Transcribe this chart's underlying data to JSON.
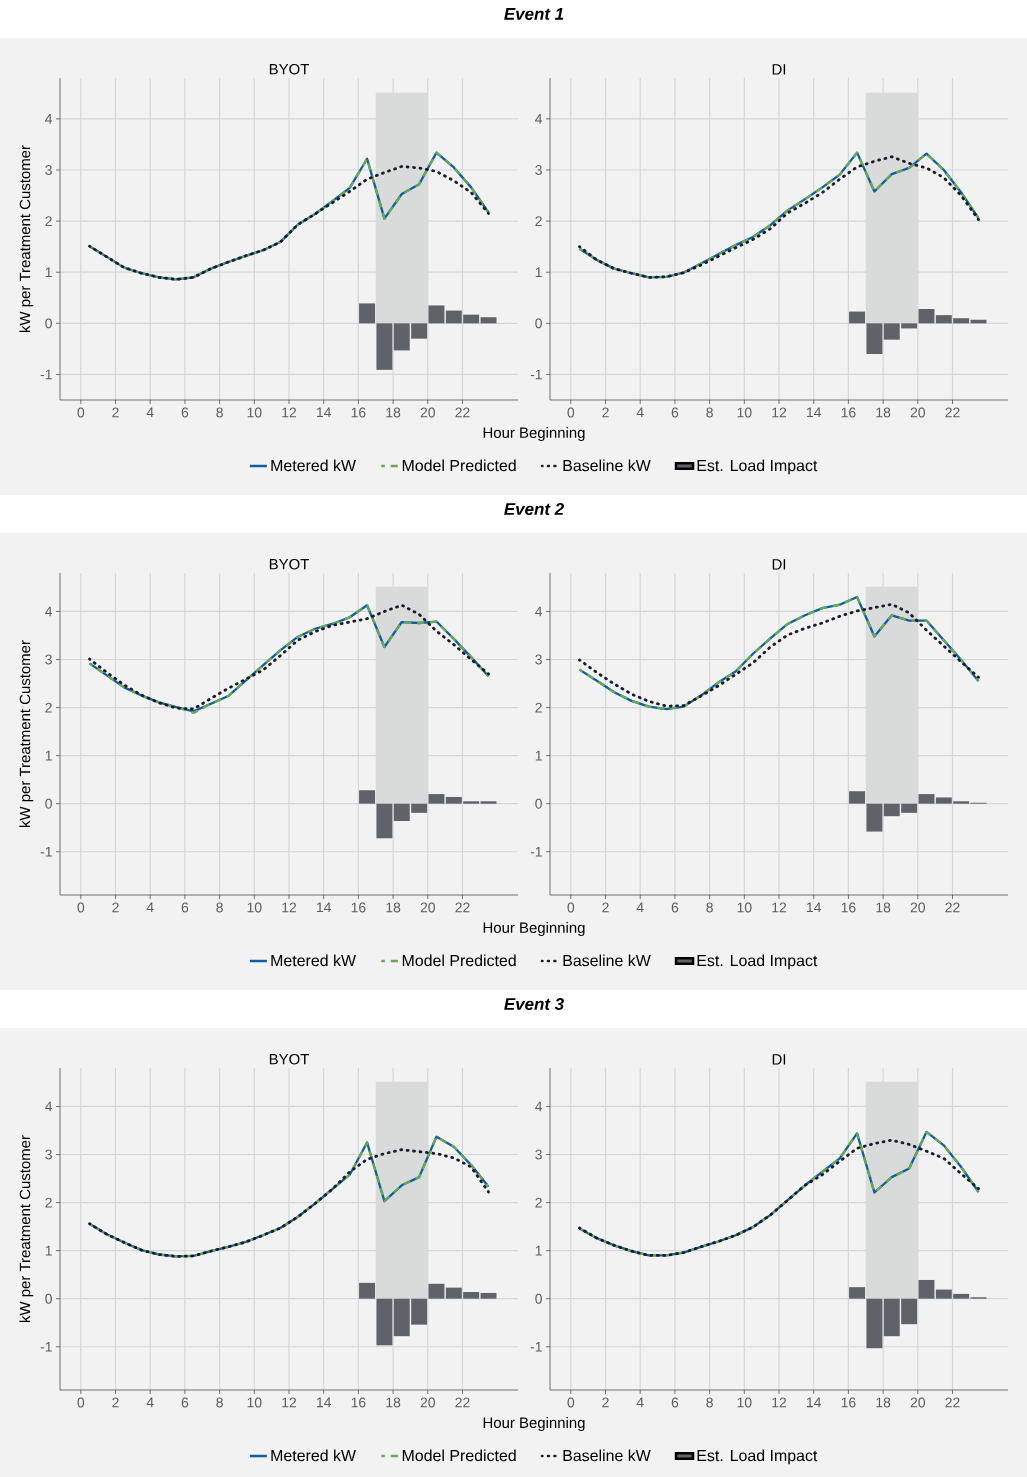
{
  "chart_data": [
    {
      "type": "line",
      "title": "Event 1",
      "subtitle": "BYOT",
      "xlabel": "Hour Beginning",
      "ylabel": "kW per Treatment Customer",
      "x": [
        0.5,
        1.5,
        2.5,
        3.5,
        4.5,
        5.5,
        6.5,
        7.5,
        8.5,
        9.5,
        10.5,
        11.5,
        12.5,
        13.5,
        14.5,
        15.5,
        16.5,
        17.5,
        18.5,
        19.5,
        20.5,
        21.5,
        22.5,
        23.5
      ],
      "xlim": [
        -1.2,
        25.2
      ],
      "ylim": [
        -1.5,
        4.8
      ],
      "xticks": [
        0,
        2,
        4,
        6,
        8,
        10,
        12,
        14,
        16,
        18,
        20,
        22
      ],
      "yticks": [
        -1,
        0,
        1,
        2,
        3,
        4
      ],
      "grid": true,
      "legend": "bottom",
      "bands": [
        {
          "axis": "x",
          "from": 17,
          "to": 20,
          "color": "#d9dada"
        }
      ],
      "series": [
        {
          "name": "Metered kW",
          "color": "#0b5fa5",
          "line_style": "solid",
          "values": [
            1.51,
            1.3,
            1.09,
            0.98,
            0.9,
            0.86,
            0.9,
            1.07,
            1.2,
            1.32,
            1.43,
            1.59,
            1.93,
            2.14,
            2.39,
            2.65,
            3.22,
            2.05,
            2.53,
            2.72,
            3.34,
            3.05,
            2.66,
            2.17
          ]
        },
        {
          "name": "Model Predicted",
          "color": "#6aa84f",
          "line_style": "dashed",
          "values": [
            1.51,
            1.3,
            1.09,
            0.98,
            0.9,
            0.86,
            0.9,
            1.07,
            1.2,
            1.32,
            1.43,
            1.59,
            1.93,
            2.14,
            2.39,
            2.65,
            3.22,
            2.05,
            2.53,
            2.72,
            3.34,
            3.05,
            2.66,
            2.17
          ]
        },
        {
          "name": "Baseline kW",
          "color": "#1b1b2b",
          "line_style": "dotted",
          "values": [
            1.51,
            1.3,
            1.09,
            0.98,
            0.9,
            0.86,
            0.9,
            1.07,
            1.2,
            1.32,
            1.43,
            1.59,
            1.93,
            2.14,
            2.36,
            2.58,
            2.82,
            2.95,
            3.07,
            3.04,
            2.97,
            2.79,
            2.56,
            2.15
          ]
        },
        {
          "name": "Est. Load Impact",
          "type": "bar",
          "color": "#5f6369",
          "values": [
            null,
            null,
            null,
            null,
            null,
            null,
            null,
            null,
            null,
            null,
            null,
            null,
            null,
            null,
            null,
            null,
            0.39,
            -0.91,
            -0.53,
            -0.3,
            0.35,
            0.25,
            0.17,
            0.12
          ]
        }
      ]
    },
    {
      "type": "line",
      "subtitle": "DI",
      "x": [
        0.5,
        1.5,
        2.5,
        3.5,
        4.5,
        5.5,
        6.5,
        7.5,
        8.5,
        9.5,
        10.5,
        11.5,
        12.5,
        13.5,
        14.5,
        15.5,
        16.5,
        17.5,
        18.5,
        19.5,
        20.5,
        21.5,
        22.5,
        23.5
      ],
      "xlim": [
        -1.2,
        25.2
      ],
      "ylim": [
        -1.5,
        4.8
      ],
      "xticks": [
        0,
        2,
        4,
        6,
        8,
        10,
        12,
        14,
        16,
        18,
        20,
        22
      ],
      "yticks": [
        -1,
        0,
        1,
        2,
        3,
        4
      ],
      "grid": true,
      "bands": [
        {
          "axis": "x",
          "from": 17,
          "to": 20,
          "color": "#d9dada"
        }
      ],
      "series": [
        {
          "color": "#0b5fa5",
          "line_style": "solid",
          "values": [
            1.46,
            1.24,
            1.07,
            0.98,
            0.9,
            0.91,
            0.99,
            1.17,
            1.35,
            1.53,
            1.69,
            1.92,
            2.21,
            2.43,
            2.66,
            2.91,
            3.34,
            2.58,
            2.92,
            3.04,
            3.32,
            3.0,
            2.56,
            2.06
          ]
        },
        {
          "color": "#6aa84f",
          "line_style": "dashed",
          "values": [
            1.46,
            1.24,
            1.07,
            0.98,
            0.9,
            0.91,
            0.99,
            1.17,
            1.35,
            1.53,
            1.69,
            1.92,
            2.21,
            2.43,
            2.66,
            2.91,
            3.34,
            2.58,
            2.92,
            3.04,
            3.32,
            3.0,
            2.56,
            2.06
          ]
        },
        {
          "color": "#1b1b2b",
          "line_style": "dotted",
          "values": [
            1.5,
            1.24,
            1.07,
            0.98,
            0.9,
            0.91,
            0.99,
            1.14,
            1.31,
            1.48,
            1.64,
            1.85,
            2.16,
            2.35,
            2.56,
            2.82,
            3.06,
            3.17,
            3.26,
            3.13,
            3.04,
            2.85,
            2.5,
            2.03
          ]
        },
        {
          "type": "bar",
          "color": "#5f6369",
          "values": [
            null,
            null,
            null,
            null,
            null,
            null,
            null,
            null,
            null,
            null,
            null,
            null,
            null,
            null,
            null,
            null,
            0.23,
            -0.6,
            -0.32,
            -0.1,
            0.28,
            0.16,
            0.1,
            0.07
          ]
        }
      ]
    },
    {
      "type": "line",
      "title": "Event 2",
      "subtitle": "BYOT",
      "xlabel": "Hour Beginning",
      "ylabel": "kW per Treatment Customer",
      "x": [
        0.5,
        1.5,
        2.5,
        3.5,
        4.5,
        5.5,
        6.5,
        7.5,
        8.5,
        9.5,
        10.5,
        11.5,
        12.5,
        13.5,
        14.5,
        15.5,
        16.5,
        17.5,
        18.5,
        19.5,
        20.5,
        21.5,
        22.5,
        23.5
      ],
      "xlim": [
        -1.2,
        25.2
      ],
      "ylim": [
        -1.9,
        4.8
      ],
      "xticks": [
        0,
        2,
        4,
        6,
        8,
        10,
        12,
        14,
        16,
        18,
        20,
        22
      ],
      "yticks": [
        -1,
        0,
        1,
        2,
        3,
        4
      ],
      "grid": true,
      "legend": "bottom",
      "bands": [
        {
          "axis": "x",
          "from": 17,
          "to": 20,
          "color": "#d9dada"
        }
      ],
      "series": [
        {
          "name": "Metered kW",
          "color": "#0b5fa5",
          "line_style": "solid",
          "values": [
            2.92,
            2.67,
            2.42,
            2.25,
            2.11,
            2.01,
            1.92,
            2.08,
            2.24,
            2.56,
            2.88,
            3.19,
            3.47,
            3.64,
            3.74,
            3.88,
            4.13,
            3.26,
            3.78,
            3.76,
            3.79,
            3.43,
            3.05,
            2.65
          ]
        },
        {
          "name": "Model Predicted",
          "color": "#6aa84f",
          "line_style": "dashed",
          "values": [
            2.92,
            2.67,
            2.42,
            2.25,
            2.11,
            2.01,
            1.89,
            2.08,
            2.24,
            2.56,
            2.88,
            3.19,
            3.47,
            3.64,
            3.74,
            3.88,
            4.13,
            3.26,
            3.78,
            3.76,
            3.79,
            3.43,
            3.05,
            2.65
          ]
        },
        {
          "name": "Baseline kW",
          "color": "#1b1b2b",
          "line_style": "dotted",
          "values": [
            3.01,
            2.73,
            2.47,
            2.26,
            2.1,
            1.99,
            1.97,
            2.19,
            2.4,
            2.59,
            2.78,
            3.08,
            3.4,
            3.58,
            3.71,
            3.78,
            3.85,
            4.0,
            4.13,
            3.94,
            3.59,
            3.31,
            3.0,
            2.7
          ]
        },
        {
          "name": "Est. Load Impact",
          "type": "bar",
          "color": "#5f6369",
          "values": [
            null,
            null,
            null,
            null,
            null,
            null,
            null,
            null,
            null,
            null,
            null,
            null,
            null,
            null,
            null,
            null,
            0.28,
            -0.72,
            -0.36,
            -0.19,
            0.2,
            0.14,
            0.05,
            0.05
          ]
        }
      ]
    },
    {
      "type": "line",
      "subtitle": "DI",
      "x": [
        0.5,
        1.5,
        2.5,
        3.5,
        4.5,
        5.5,
        6.5,
        7.5,
        8.5,
        9.5,
        10.5,
        11.5,
        12.5,
        13.5,
        14.5,
        15.5,
        16.5,
        17.5,
        18.5,
        19.5,
        20.5,
        21.5,
        22.5,
        23.5
      ],
      "xlim": [
        -1.2,
        25.2
      ],
      "ylim": [
        -1.9,
        4.8
      ],
      "xticks": [
        0,
        2,
        4,
        6,
        8,
        10,
        12,
        14,
        16,
        18,
        20,
        22
      ],
      "yticks": [
        -1,
        0,
        1,
        2,
        3,
        4
      ],
      "grid": true,
      "bands": [
        {
          "axis": "x",
          "from": 17,
          "to": 20,
          "color": "#d9dada"
        }
      ],
      "series": [
        {
          "color": "#0b5fa5",
          "line_style": "solid",
          "values": [
            2.79,
            2.56,
            2.32,
            2.14,
            2.02,
            1.97,
            2.02,
            2.25,
            2.52,
            2.75,
            3.12,
            3.44,
            3.74,
            3.92,
            4.07,
            4.14,
            4.3,
            3.48,
            3.92,
            3.81,
            3.81,
            3.4,
            2.99,
            2.55
          ]
        },
        {
          "color": "#6aa84f",
          "line_style": "dashed",
          "values": [
            2.79,
            2.56,
            2.32,
            2.14,
            2.02,
            1.97,
            2.02,
            2.25,
            2.52,
            2.75,
            3.12,
            3.44,
            3.74,
            3.92,
            4.07,
            4.14,
            4.3,
            3.48,
            3.92,
            3.81,
            3.81,
            3.4,
            2.99,
            2.55
          ]
        },
        {
          "color": "#1b1b2b",
          "line_style": "dotted",
          "values": [
            2.99,
            2.73,
            2.49,
            2.28,
            2.13,
            2.03,
            2.04,
            2.24,
            2.45,
            2.69,
            2.93,
            3.26,
            3.51,
            3.65,
            3.76,
            3.9,
            4.01,
            4.08,
            4.15,
            3.97,
            3.61,
            3.28,
            2.95,
            2.63
          ]
        },
        {
          "type": "bar",
          "color": "#5f6369",
          "values": [
            null,
            null,
            null,
            null,
            null,
            null,
            null,
            null,
            null,
            null,
            null,
            null,
            null,
            null,
            null,
            null,
            0.26,
            -0.58,
            -0.26,
            -0.19,
            0.2,
            0.13,
            0.05,
            0.02
          ]
        }
      ]
    },
    {
      "type": "line",
      "title": "Event 3",
      "subtitle": "BYOT",
      "xlabel": "Hour Beginning",
      "ylabel": "kW per Treatment Customer",
      "x": [
        0.5,
        1.5,
        2.5,
        3.5,
        4.5,
        5.5,
        6.5,
        7.5,
        8.5,
        9.5,
        10.5,
        11.5,
        12.5,
        13.5,
        14.5,
        15.5,
        16.5,
        17.5,
        18.5,
        19.5,
        20.5,
        21.5,
        22.5,
        23.5
      ],
      "xlim": [
        -1.2,
        25.2
      ],
      "ylim": [
        -1.9,
        4.8
      ],
      "xticks": [
        0,
        2,
        4,
        6,
        8,
        10,
        12,
        14,
        16,
        18,
        20,
        22
      ],
      "yticks": [
        -1,
        0,
        1,
        2,
        3,
        4
      ],
      "grid": true,
      "legend": "bottom",
      "bands": [
        {
          "axis": "x",
          "from": 17,
          "to": 20,
          "color": "#d9dada"
        }
      ],
      "series": [
        {
          "name": "Metered kW",
          "color": "#0b5fa5",
          "line_style": "solid",
          "values": [
            1.56,
            1.34,
            1.17,
            1.01,
            0.92,
            0.88,
            0.89,
            0.99,
            1.08,
            1.18,
            1.32,
            1.47,
            1.7,
            1.98,
            2.28,
            2.58,
            3.25,
            2.03,
            2.36,
            2.53,
            3.37,
            3.16,
            2.78,
            2.33
          ]
        },
        {
          "name": "Model Predicted",
          "color": "#6aa84f",
          "line_style": "dashed",
          "values": [
            1.56,
            1.34,
            1.17,
            1.01,
            0.92,
            0.88,
            0.89,
            0.99,
            1.08,
            1.18,
            1.32,
            1.47,
            1.7,
            1.98,
            2.28,
            2.58,
            3.25,
            2.03,
            2.36,
            2.53,
            3.37,
            3.16,
            2.78,
            2.33
          ]
        },
        {
          "name": "Baseline kW",
          "color": "#1b1b2b",
          "line_style": "dotted",
          "values": [
            1.56,
            1.34,
            1.17,
            1.01,
            0.92,
            0.88,
            0.89,
            0.99,
            1.08,
            1.18,
            1.32,
            1.47,
            1.7,
            1.98,
            2.28,
            2.64,
            2.9,
            3.02,
            3.1,
            3.06,
            3.02,
            2.93,
            2.74,
            2.22
          ]
        },
        {
          "name": "Est. Load Impact",
          "type": "bar",
          "color": "#5f6369",
          "values": [
            null,
            null,
            null,
            null,
            null,
            null,
            null,
            null,
            null,
            null,
            null,
            null,
            null,
            null,
            null,
            null,
            0.33,
            -0.97,
            -0.78,
            -0.54,
            0.31,
            0.23,
            0.14,
            0.12
          ]
        }
      ]
    },
    {
      "type": "line",
      "subtitle": "DI",
      "x": [
        0.5,
        1.5,
        2.5,
        3.5,
        4.5,
        5.5,
        6.5,
        7.5,
        8.5,
        9.5,
        10.5,
        11.5,
        12.5,
        13.5,
        14.5,
        15.5,
        16.5,
        17.5,
        18.5,
        19.5,
        20.5,
        21.5,
        22.5,
        23.5
      ],
      "xlim": [
        -1.2,
        25.2
      ],
      "ylim": [
        -1.9,
        4.8
      ],
      "xticks": [
        0,
        2,
        4,
        6,
        8,
        10,
        12,
        14,
        16,
        18,
        20,
        22
      ],
      "yticks": [
        -1,
        0,
        1,
        2,
        3,
        4
      ],
      "grid": true,
      "bands": [
        {
          "axis": "x",
          "from": 17,
          "to": 20,
          "color": "#d9dada"
        }
      ],
      "series": [
        {
          "color": "#0b5fa5",
          "line_style": "solid",
          "values": [
            1.46,
            1.26,
            1.11,
            0.99,
            0.9,
            0.9,
            0.96,
            1.08,
            1.19,
            1.32,
            1.49,
            1.74,
            2.05,
            2.36,
            2.64,
            2.92,
            3.44,
            2.21,
            2.53,
            2.71,
            3.47,
            3.19,
            2.74,
            2.22
          ]
        },
        {
          "color": "#6aa84f",
          "line_style": "dashed",
          "values": [
            1.46,
            1.26,
            1.11,
            0.99,
            0.9,
            0.9,
            0.96,
            1.08,
            1.19,
            1.32,
            1.49,
            1.74,
            2.05,
            2.36,
            2.64,
            2.92,
            3.44,
            2.21,
            2.53,
            2.71,
            3.47,
            3.19,
            2.74,
            2.22
          ]
        },
        {
          "color": "#1b1b2b",
          "line_style": "dotted",
          "values": [
            1.47,
            1.26,
            1.11,
            0.99,
            0.9,
            0.9,
            0.96,
            1.08,
            1.19,
            1.32,
            1.49,
            1.74,
            2.05,
            2.36,
            2.58,
            2.86,
            3.13,
            3.23,
            3.3,
            3.21,
            3.07,
            2.92,
            2.6,
            2.29
          ]
        },
        {
          "type": "bar",
          "color": "#5f6369",
          "values": [
            null,
            null,
            null,
            null,
            null,
            null,
            null,
            null,
            null,
            null,
            null,
            null,
            null,
            null,
            null,
            null,
            0.24,
            -1.03,
            -0.78,
            -0.53,
            0.39,
            0.19,
            0.1,
            0.03
          ]
        }
      ]
    }
  ]
}
